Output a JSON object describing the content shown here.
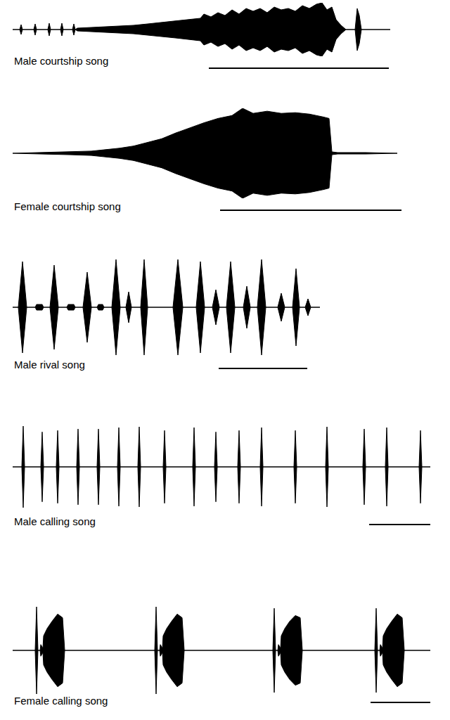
{
  "chart_data": [
    {
      "type": "area",
      "title": "Male courtship song",
      "color": "#000000",
      "tick_labels": false,
      "x": [
        18,
        28,
        30,
        32,
        48,
        50,
        52,
        68,
        70,
        72,
        86,
        88,
        90,
        103,
        105,
        107,
        110,
        130,
        150,
        170,
        190,
        210,
        230,
        250,
        270,
        285,
        290,
        300,
        310,
        320,
        330,
        340,
        350,
        360,
        370,
        380,
        390,
        400,
        410,
        420,
        430,
        440,
        450,
        458,
        465,
        472,
        478,
        485,
        492,
        505,
        508,
        511,
        514,
        555
      ],
      "values": [
        0,
        0,
        7,
        0,
        0,
        8,
        0,
        0,
        9,
        0,
        0,
        9,
        0,
        0,
        8,
        0,
        2,
        3,
        4,
        5,
        6,
        8,
        10,
        12,
        14,
        16,
        22,
        18,
        24,
        20,
        28,
        22,
        30,
        26,
        30,
        24,
        32,
        28,
        30,
        26,
        34,
        30,
        36,
        38,
        28,
        32,
        14,
        6,
        0,
        0,
        30,
        20,
        0,
        0
      ],
      "scale_bar": [
        297,
        553
      ]
    },
    {
      "type": "area",
      "title": "Female courtship song",
      "color": "#000000",
      "tick_labels": false,
      "x": [
        18,
        60,
        100,
        130,
        150,
        170,
        190,
        210,
        230,
        250,
        270,
        290,
        310,
        330,
        345,
        360,
        380,
        400,
        420,
        440,
        460,
        468,
        472,
        480,
        520,
        565
      ],
      "values": [
        0,
        1,
        2,
        3,
        5,
        7,
        10,
        15,
        20,
        28,
        35,
        42,
        48,
        52,
        62,
        55,
        58,
        55,
        56,
        54,
        50,
        48,
        2,
        1,
        1,
        0
      ],
      "scale_bar": [
        313,
        571
      ]
    },
    {
      "type": "area",
      "title": "Male rival song",
      "color": "#000000",
      "tick_labels": false,
      "x": [
        18,
        26,
        32,
        38,
        50,
        52,
        60,
        62,
        71,
        77,
        83,
        95,
        97,
        105,
        107,
        118,
        124,
        130,
        138,
        140,
        146,
        148,
        159,
        165,
        171,
        179,
        183,
        187,
        200,
        205,
        210,
        246,
        253,
        260,
        279,
        285,
        291,
        302,
        307,
        312,
        322,
        328,
        334,
        346,
        351,
        356,
        366,
        372,
        378,
        395,
        400,
        405,
        416,
        421,
        426,
        434,
        438,
        442,
        455
      ],
      "values": [
        0,
        0,
        65,
        0,
        0,
        4,
        4,
        0,
        0,
        60,
        0,
        0,
        4,
        4,
        0,
        0,
        50,
        0,
        0,
        4,
        4,
        0,
        0,
        68,
        0,
        0,
        22,
        0,
        0,
        68,
        0,
        0,
        68,
        0,
        0,
        65,
        0,
        0,
        25,
        0,
        0,
        65,
        0,
        0,
        30,
        0,
        0,
        68,
        0,
        0,
        20,
        0,
        0,
        55,
        0,
        0,
        12,
        0,
        0
      ],
      "scale_bar": [
        311,
        437
      ]
    },
    {
      "type": "area",
      "title": "Male calling song",
      "color": "#000000",
      "tick_labels": false,
      "x": [
        18,
        31,
        33,
        35,
        58,
        60,
        62,
        80,
        82,
        84,
        109,
        111,
        113,
        138,
        140,
        142,
        167,
        169,
        171,
        196,
        198,
        200,
        232,
        234,
        236,
        274,
        276,
        278,
        305,
        307,
        309,
        338,
        340,
        342,
        370,
        372,
        374,
        418,
        420,
        422,
        463,
        465,
        467,
        516,
        518,
        520,
        548,
        550,
        552,
        596,
        598,
        600,
        612
      ],
      "values": [
        0,
        0,
        56,
        0,
        0,
        48,
        0,
        0,
        50,
        0,
        0,
        52,
        0,
        0,
        52,
        0,
        0,
        54,
        0,
        0,
        55,
        0,
        0,
        50,
        0,
        0,
        54,
        0,
        0,
        48,
        0,
        0,
        50,
        0,
        0,
        54,
        0,
        0,
        50,
        0,
        0,
        55,
        0,
        0,
        52,
        0,
        0,
        54,
        0,
        0,
        50,
        0,
        0
      ],
      "scale_bar": [
        525,
        613
      ]
    },
    {
      "type": "area",
      "title": "Female calling song",
      "color": "#000000",
      "tick_labels": false,
      "x": [
        18,
        50,
        52,
        54,
        57,
        58,
        61,
        62,
        67,
        74,
        82,
        89,
        92,
        220,
        222,
        224,
        227,
        228,
        231,
        232,
        237,
        244,
        252,
        259,
        262,
        388,
        390,
        392,
        395,
        396,
        399,
        400,
        405,
        412,
        420,
        427,
        430,
        533,
        535,
        537,
        540,
        541,
        544,
        545,
        550,
        557,
        565,
        572,
        575,
        612
      ],
      "values": [
        0,
        0,
        60,
        0,
        0,
        8,
        3,
        20,
        30,
        40,
        50,
        45,
        0,
        0,
        60,
        0,
        0,
        8,
        3,
        20,
        30,
        40,
        50,
        45,
        0,
        0,
        58,
        0,
        0,
        8,
        3,
        20,
        30,
        40,
        48,
        45,
        0,
        0,
        58,
        0,
        0,
        8,
        3,
        20,
        30,
        40,
        50,
        45,
        0,
        0
      ],
      "scale_bar": [
        527,
        612
      ]
    }
  ]
}
